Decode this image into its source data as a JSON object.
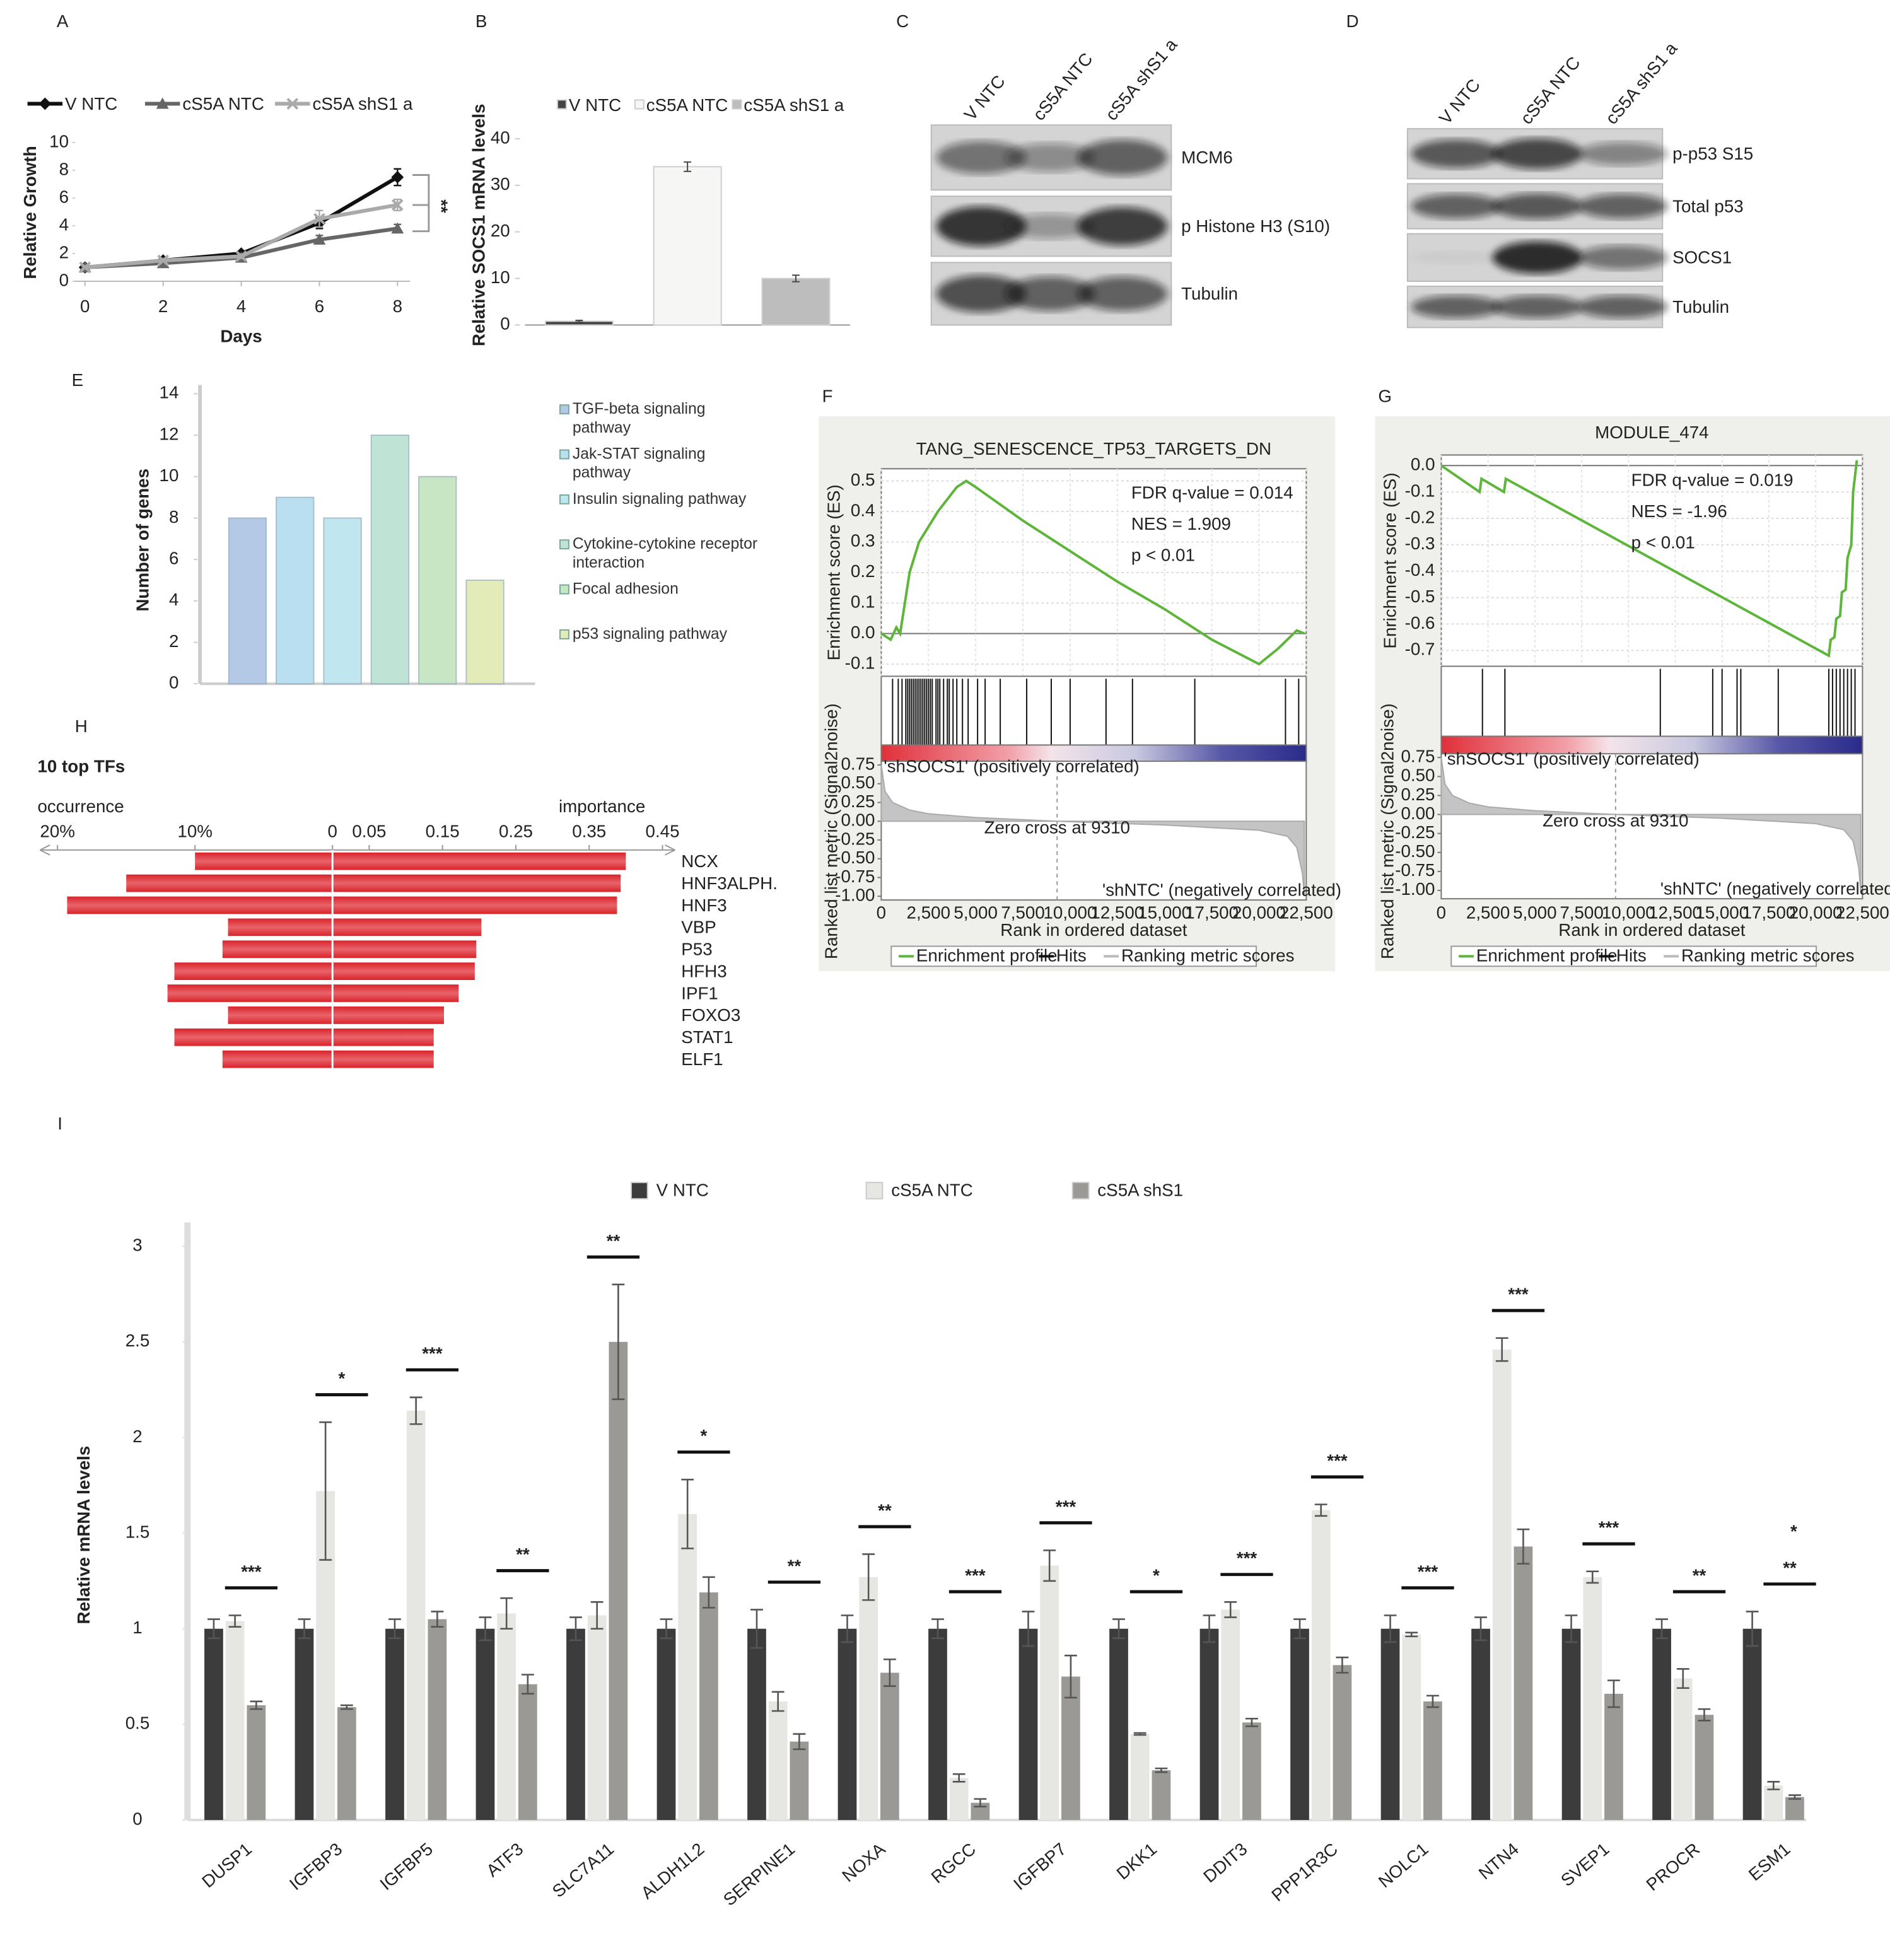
{
  "chart_data": [
    {
      "panel": "A",
      "type": "line",
      "x": [
        0,
        2,
        4,
        6,
        8
      ],
      "xlim": [
        0,
        8
      ],
      "ylim": [
        0,
        10
      ],
      "xticks": [
        0,
        2,
        4,
        6,
        8
      ],
      "yticks": [
        0,
        2,
        4,
        6,
        8,
        10
      ],
      "xlabel": "Days",
      "ylabel": "Relative Growth",
      "annotation": "**",
      "series": [
        {
          "name": "V NTC",
          "color": "#111111",
          "values": [
            1,
            1.5,
            2,
            4.2,
            7.5
          ],
          "errors": [
            0.1,
            0.1,
            0.15,
            0.4,
            0.6
          ]
        },
        {
          "name": "cS5A NTC",
          "color": "#666666",
          "values": [
            1,
            1.3,
            1.7,
            3,
            3.8
          ],
          "errors": [
            0.1,
            0.1,
            0.1,
            0.3,
            0.3
          ]
        },
        {
          "name": "cS5A shS1 a",
          "color": "#aaaaaa",
          "values": [
            1,
            1.5,
            1.8,
            4.5,
            5.5
          ],
          "errors": [
            0.1,
            0.1,
            0.15,
            0.6,
            0.4
          ]
        }
      ]
    },
    {
      "panel": "B",
      "type": "bar",
      "ylim": [
        0,
        40
      ],
      "yticks": [
        0,
        10,
        20,
        30,
        40
      ],
      "ylabel": "Relative SOCS1 mRNA levels",
      "series": [
        {
          "name": "V NTC",
          "color": "#444444",
          "values": [
            0.8
          ],
          "errors": [
            0.2
          ]
        },
        {
          "name": "cS5A NTC",
          "color": "#f6f6f4",
          "values": [
            34
          ],
          "errors": [
            1
          ]
        },
        {
          "name": "cS5A shS1 a",
          "color": "#bdbdbd",
          "values": [
            10
          ],
          "errors": [
            0.7
          ]
        }
      ]
    },
    {
      "panel": "E",
      "type": "bar",
      "ylim": [
        0,
        14
      ],
      "yticks": [
        0,
        2,
        4,
        6,
        8,
        10,
        12,
        14
      ],
      "ylabel": "Number of genes",
      "categories": [
        "TGF-beta signaling pathway",
        "Jak-STAT signaling pathway",
        "Insulin signaling pathway",
        "Cytokine-cytokine receptor interaction",
        "Focal adhesion",
        "p53 signaling pathway"
      ],
      "values": [
        8,
        9,
        8,
        12,
        10,
        5
      ],
      "colors": [
        "#b3c9e6",
        "#b9dff0",
        "#c0e6f0",
        "#bfe3d5",
        "#c9e6c4",
        "#e3ebb8"
      ]
    },
    {
      "panel": "F",
      "type": "gsea",
      "title": "TANG_SENESCENCE_TP53_TARGETS_DN",
      "stats": [
        "FDR q-value = 0.014",
        "NES = 1.909",
        "p < 0.01"
      ],
      "color": "#5db53a",
      "xlim": [
        0,
        22500
      ],
      "xticks": [
        0,
        {
          "value": 2500,
          "label": "2,500"
        },
        {
          "value": 5000,
          "label": "5,000"
        },
        {
          "value": 7500,
          "label": "7,500"
        },
        {
          "value": 10000,
          "label": "10,000"
        },
        {
          "value": 12500,
          "label": "12,500"
        },
        {
          "value": 15000,
          "label": "15,000"
        },
        {
          "value": 17500,
          "label": "17,500"
        },
        {
          "value": 20000,
          "label": "20,000"
        },
        {
          "value": 22500,
          "label": "22,500"
        }
      ],
      "xlabel": "Rank in ordered dataset",
      "es_label": "Enrichment score (ES)",
      "metric_label": "Ranked list metric (Signal2noise)",
      "es_ylim": [
        -0.14,
        0.54
      ],
      "es_yticks": [
        0.5,
        0.4,
        0.3,
        0.2,
        0.1,
        {
          "value": 0,
          "label": "0.0"
        },
        -0.1
      ],
      "es_x": [
        0,
        500,
        800,
        1000,
        1500,
        2000,
        3000,
        4000,
        4500,
        5000,
        7500,
        10000,
        12500,
        15000,
        17500,
        20000,
        21000,
        22000,
        22400
      ],
      "es_values": [
        0,
        -0.02,
        0.02,
        0,
        0.2,
        0.3,
        0.4,
        0.48,
        0.5,
        0.48,
        0.37,
        0.27,
        0.17,
        0.08,
        -0.02,
        -0.1,
        -0.05,
        0.01,
        0
      ],
      "hits": [
        600,
        900,
        1100,
        1300,
        1400,
        1500,
        1600,
        1700,
        1800,
        1900,
        2000,
        2100,
        2200,
        2300,
        2400,
        2500,
        2600,
        2700,
        2900,
        3000,
        3100,
        3300,
        3500,
        3600,
        3800,
        4000,
        4300,
        4600,
        5100,
        5500,
        6300,
        7700,
        9000,
        10000,
        11900,
        13300,
        16600,
        21400,
        22100
      ],
      "metric_ylim": [
        -1.05,
        0.8
      ],
      "metric_yticks": [
        0.75,
        {
          "value": 0.5,
          "label": "0.50"
        },
        0.25,
        {
          "value": 0,
          "label": "0.00"
        },
        -0.25,
        {
          "value": -0.5,
          "label": "-0.50"
        },
        -0.75,
        {
          "value": -1,
          "label": "-1.00"
        }
      ],
      "metric_x": [
        0,
        200,
        600,
        1500,
        2500,
        5000,
        9310,
        15000,
        20000,
        21500,
        22000,
        22300,
        22400
      ],
      "metric_values": [
        0.75,
        0.4,
        0.25,
        0.15,
        0.1,
        0.05,
        0,
        -0.05,
        -0.12,
        -0.2,
        -0.35,
        -0.7,
        -1
      ],
      "zero_cross": 9310,
      "zero_cross_label": "Zero cross at 9310",
      "positive_label": "'shSOCS1' (positively correlated)",
      "negative_label": "'shNTC' (negatively correlated)",
      "legend": [
        "Enrichment profile",
        "Hits",
        "Ranking metric scores"
      ]
    },
    {
      "panel": "G",
      "type": "gsea",
      "title": "MODULE_474",
      "stats": [
        "FDR q-value = 0.019",
        "NES =  -1.96",
        "p < 0.01"
      ],
      "color": "#5db53a",
      "xlim": [
        0,
        22500
      ],
      "xticks": [
        0,
        {
          "value": 2500,
          "label": "2,500"
        },
        {
          "value": 5000,
          "label": "5,000"
        },
        {
          "value": 7500,
          "label": "7,500"
        },
        {
          "value": 10000,
          "label": "10,000"
        },
        {
          "value": 12500,
          "label": "12,500"
        },
        {
          "value": 15000,
          "label": "15,000"
        },
        {
          "value": 17500,
          "label": "17,500"
        },
        {
          "value": 20000,
          "label": "20,000"
        },
        {
          "value": 22500,
          "label": "22,500"
        }
      ],
      "xlabel": "Rank in ordered dataset",
      "es_label": "Enrichment score (ES)",
      "metric_label": "Ranked list metric (Signal2noise)",
      "es_ylim": [
        -0.76,
        0.04
      ],
      "es_yticks": [
        {
          "value": 0,
          "label": "0.0"
        },
        -0.1,
        -0.2,
        -0.3,
        -0.4,
        -0.5,
        -0.6,
        -0.7
      ],
      "es_x": [
        0,
        2050,
        2150,
        3350,
        3450,
        20700,
        20800,
        21000,
        21100,
        21300,
        21400,
        21600,
        21700,
        21900,
        22000,
        22200
      ],
      "es_values": [
        0,
        -0.1,
        -0.05,
        -0.1,
        -0.05,
        -0.72,
        -0.66,
        -0.65,
        -0.58,
        -0.57,
        -0.48,
        -0.47,
        -0.35,
        -0.3,
        -0.1,
        0.02
      ],
      "hits": [
        2200,
        3400,
        11700,
        14500,
        15000,
        15800,
        16000,
        18000,
        20700,
        20900,
        21100,
        21300,
        21500,
        21700,
        21900,
        22100
      ],
      "metric_ylim": [
        -1.11,
        0.8
      ],
      "metric_yticks": [
        0.75,
        {
          "value": 0.5,
          "label": "0.50"
        },
        0.25,
        {
          "value": 0,
          "label": "0.00"
        },
        -0.25,
        {
          "value": -0.5,
          "label": "-0.50"
        },
        -0.75,
        {
          "value": -1,
          "label": "-1.00"
        }
      ],
      "metric_x": [
        0,
        200,
        600,
        1500,
        2500,
        5000,
        9310,
        15000,
        20000,
        21500,
        22000,
        22300,
        22400
      ],
      "metric_values": [
        0.75,
        0.4,
        0.25,
        0.15,
        0.1,
        0.05,
        0,
        -0.05,
        -0.12,
        -0.2,
        -0.35,
        -0.7,
        -1
      ],
      "zero_cross": 9310,
      "zero_cross_label": "Zero cross at 9310",
      "positive_label": "'shSOCS1' (positively correlated)",
      "negative_label": "'shNTC' (negatively correlated)",
      "legend": [
        "Enrichment profile",
        "Hits",
        "Ranking metric scores"
      ]
    },
    {
      "panel": "H",
      "type": "diverging_bar",
      "title": "10 top TFs",
      "left_label": "occurrence",
      "right_label": "importance",
      "color": "#d9232a",
      "categories": [
        "NCX",
        "HNF3ALPH.",
        "HNF3",
        "VBP",
        "P53",
        "HFH3",
        "IPF1",
        "FOXO3",
        "STAT1",
        "ELF1"
      ],
      "occurrence": [
        10,
        15,
        19.3,
        7.6,
        8,
        11.5,
        12,
        7.6,
        11.5,
        8
      ],
      "importance": [
        0.4,
        0.393,
        0.388,
        0.203,
        0.196,
        0.194,
        0.172,
        0.152,
        0.138,
        0.138
      ],
      "occurrence_xlim": [
        0,
        20
      ],
      "occurrence_xticks": [
        {
          "value": 20,
          "label": "20%"
        },
        {
          "value": 10,
          "label": "10%"
        }
      ],
      "importance_xlim": [
        0,
        0.45
      ],
      "importance_xticks": [
        0,
        0.05,
        0.15,
        0.25,
        0.35,
        0.45
      ]
    },
    {
      "panel": "I",
      "type": "grouped_bar",
      "ylabel": "Relative mRNA levels",
      "ylim": [
        0,
        3
      ],
      "yticks": [
        0,
        0.5,
        1,
        1.5,
        2,
        2.5,
        3
      ],
      "categories": [
        "DUSP1",
        "IGFBP3",
        "IGFBP5",
        "ATF3",
        "SLC7A11",
        "ALDH1L2",
        "SERPINE1",
        "NOXA",
        "RGCC",
        "IGFBP7",
        "DKK1",
        "DDIT3",
        "PPP1R3C",
        "NOLC1",
        "NTN4",
        "SVEP1",
        "PROCR",
        "ESM1"
      ],
      "series": [
        {
          "name": "V NTC",
          "color": "#3c3c3c",
          "values": [
            1,
            1,
            1,
            1,
            1,
            1,
            1,
            1,
            1,
            1,
            1,
            1,
            1,
            1,
            1,
            1,
            1,
            1
          ],
          "errors": [
            0.05,
            0.05,
            0.05,
            0.06,
            0.06,
            0.05,
            0.1,
            0.07,
            0.05,
            0.09,
            0.05,
            0.07,
            0.05,
            0.07,
            0.06,
            0.07,
            0.05,
            0.09
          ]
        },
        {
          "name": "cS5A NTC",
          "color": "#e6e6e3",
          "values": [
            1.04,
            1.72,
            2.14,
            1.08,
            1.07,
            1.6,
            0.62,
            1.27,
            0.22,
            1.33,
            0.45,
            1.1,
            1.62,
            0.97,
            2.46,
            1.27,
            0.74,
            0.18
          ],
          "errors": [
            0.03,
            0.36,
            0.07,
            0.08,
            0.07,
            0.18,
            0.05,
            0.12,
            0.02,
            0.08,
            0.005,
            0.04,
            0.03,
            0.01,
            0.06,
            0.03,
            0.05,
            0.02
          ]
        },
        {
          "name": "cS5A shS1",
          "color": "#9b9996",
          "values": [
            0.6,
            0.59,
            1.05,
            0.71,
            2.5,
            1.19,
            0.41,
            0.77,
            0.09,
            0.75,
            0.26,
            0.51,
            0.81,
            0.62,
            1.43,
            0.66,
            0.55,
            0.12
          ],
          "errors": [
            0.02,
            0.01,
            0.04,
            0.05,
            0.3,
            0.08,
            0.04,
            0.07,
            0.02,
            0.11,
            0.01,
            0.02,
            0.04,
            0.03,
            0.09,
            0.07,
            0.03,
            0.01
          ]
        }
      ],
      "significance": [
        "***",
        "*",
        "***",
        "**",
        "**",
        "*",
        "**",
        "**",
        "***",
        "***",
        "*",
        "***",
        "***",
        "***",
        "***",
        "***",
        "**",
        "**"
      ],
      "annotation": "*"
    }
  ],
  "blots": [
    {
      "panel": "C",
      "lanes": [
        "V NTC",
        "cS5A NTC",
        "cS5A shS1 a"
      ],
      "bands": [
        "MCM6",
        "p Histone H3 (S10)",
        "Tubulin"
      ]
    },
    {
      "panel": "D",
      "lanes": [
        "V NTC",
        "cS5A NTC",
        "cS5A shS1 a"
      ],
      "bands": [
        "p-p53 S15",
        "Total p53",
        "SOCS1",
        "Tubulin"
      ]
    }
  ]
}
